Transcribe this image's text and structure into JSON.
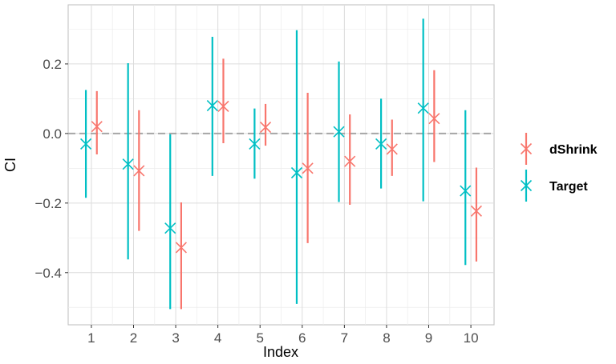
{
  "chart_data": {
    "type": "errorbar",
    "xlabel": "Index",
    "ylabel": "CI",
    "x": [
      1,
      2,
      3,
      4,
      5,
      6,
      7,
      8,
      9,
      10
    ],
    "x_ticks": [
      "1",
      "2",
      "3",
      "4",
      "5",
      "6",
      "7",
      "8",
      "9",
      "10"
    ],
    "xlim": [
      0.45,
      10.55
    ],
    "ylim": [
      -0.55,
      0.37
    ],
    "y_ticks": [
      0.2,
      0.0,
      -0.2,
      -0.4
    ],
    "y_tick_labels": [
      "0.2",
      "0.0",
      "−0.2",
      "−0.4"
    ],
    "y_minor_ticks": [
      0.3,
      0.1,
      -0.1,
      -0.3,
      -0.5
    ],
    "reference_line": 0.0,
    "grid": true,
    "legend_position": "right",
    "series": [
      {
        "name": "dShrink",
        "color": "#F8766D",
        "offset": 0.13,
        "estimate": [
          0.02,
          -0.107,
          -0.328,
          0.078,
          0.018,
          -0.1,
          -0.08,
          -0.045,
          0.043,
          -0.223
        ],
        "lower": [
          -0.06,
          -0.28,
          -0.505,
          -0.028,
          -0.035,
          -0.315,
          -0.205,
          -0.122,
          -0.082,
          -0.368
        ],
        "upper": [
          0.122,
          0.067,
          -0.198,
          0.215,
          0.085,
          0.117,
          0.055,
          0.04,
          0.182,
          -0.098
        ]
      },
      {
        "name": "Target",
        "color": "#00BFC4",
        "offset": -0.13,
        "estimate": [
          -0.03,
          -0.088,
          -0.272,
          0.08,
          -0.03,
          -0.113,
          0.005,
          -0.03,
          0.073,
          -0.165
        ],
        "lower": [
          -0.185,
          -0.362,
          -0.505,
          -0.122,
          -0.13,
          -0.49,
          -0.197,
          -0.158,
          -0.195,
          -0.378
        ],
        "upper": [
          0.125,
          0.202,
          -0.002,
          0.278,
          0.072,
          0.297,
          0.207,
          0.1,
          0.33,
          0.067
        ]
      }
    ]
  }
}
